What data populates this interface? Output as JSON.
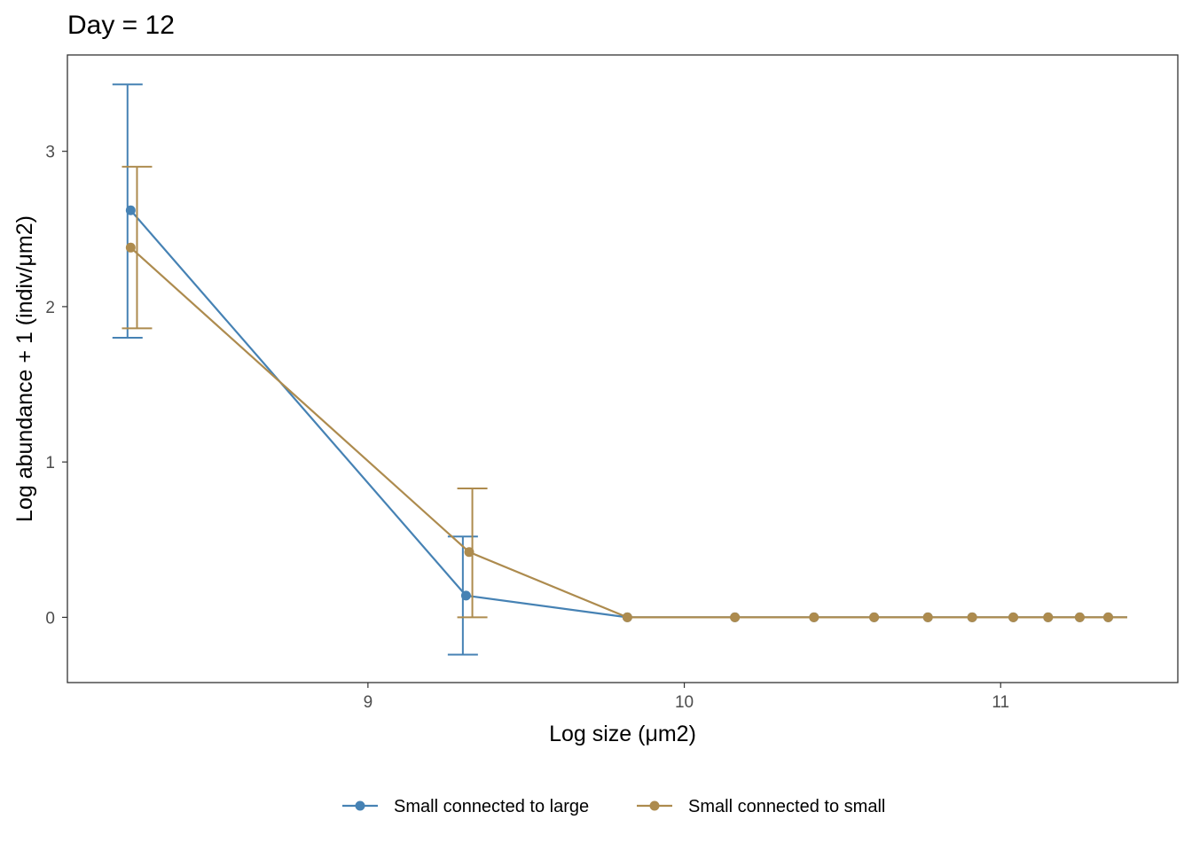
{
  "chart_data": {
    "type": "line",
    "title": "Day = 12",
    "xlabel": "Log size (μm2)",
    "ylabel": "Log abundance + 1 (indiv/μm2)",
    "xlim": [
      8.05,
      11.56
    ],
    "ylim": [
      -0.42,
      3.62
    ],
    "xticks": [
      9,
      10,
      11
    ],
    "yticks": [
      0,
      1,
      2,
      3
    ],
    "grid": false,
    "legend_position": "bottom",
    "series": [
      {
        "name": "Small connected to large",
        "color": "#4682B4",
        "x": [
          8.25,
          9.31,
          9.82,
          10.16,
          10.41,
          10.6,
          10.77,
          10.91,
          11.04,
          11.15,
          11.25,
          11.34,
          11.4
        ],
        "y": [
          2.62,
          0.14,
          0,
          0,
          0,
          0,
          0,
          0,
          0,
          0,
          0,
          0,
          0
        ],
        "markers": [
          true,
          true,
          true,
          true,
          true,
          true,
          true,
          true,
          true,
          true,
          true,
          true,
          false
        ],
        "error_bars": [
          {
            "x": 8.24,
            "low": 1.8,
            "high": 3.43
          },
          {
            "x": 9.3,
            "low": -0.24,
            "high": 0.52
          }
        ]
      },
      {
        "name": "Small connected to small",
        "color": "#AD8B4E",
        "x": [
          8.25,
          9.32,
          9.82,
          10.16,
          10.41,
          10.6,
          10.77,
          10.91,
          11.04,
          11.15,
          11.25,
          11.34,
          11.4
        ],
        "y": [
          2.38,
          0.42,
          0,
          0,
          0,
          0,
          0,
          0,
          0,
          0,
          0,
          0,
          0
        ],
        "markers": [
          true,
          true,
          true,
          true,
          true,
          true,
          true,
          true,
          true,
          true,
          true,
          true,
          false
        ],
        "error_bars": [
          {
            "x": 8.27,
            "low": 1.86,
            "high": 2.9
          },
          {
            "x": 9.33,
            "low": 0.0,
            "high": 0.83
          }
        ]
      }
    ]
  }
}
